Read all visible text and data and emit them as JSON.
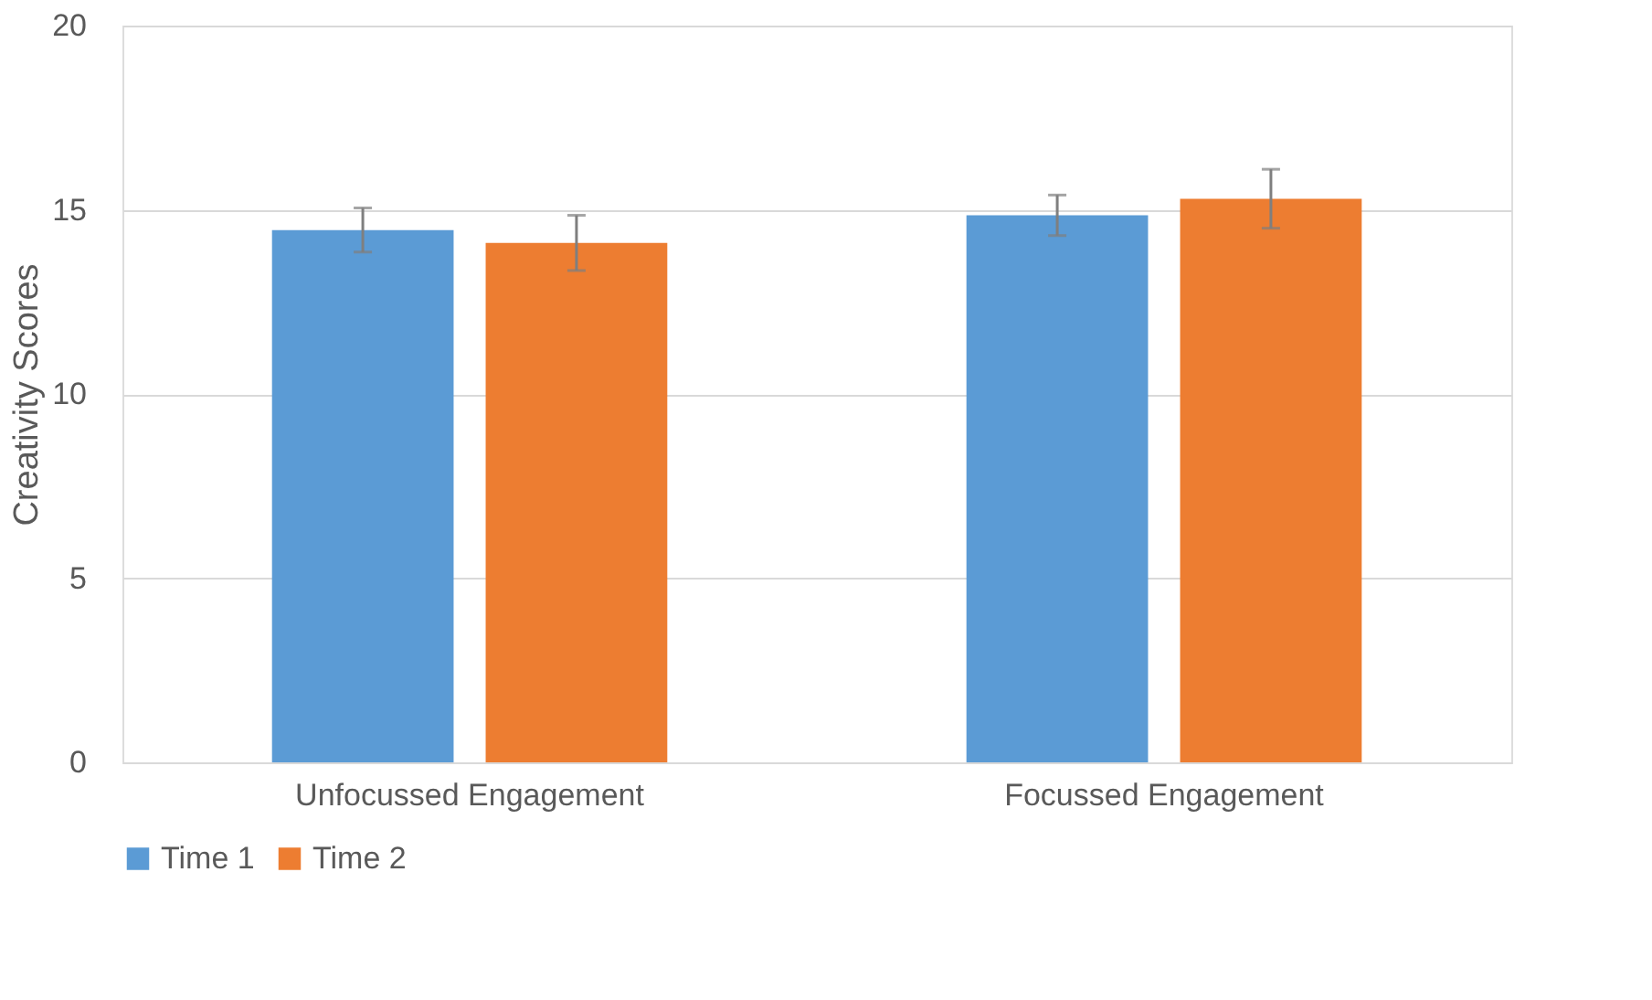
{
  "chart_data": {
    "type": "bar",
    "ylabel": "Creativity  Scores",
    "categories": [
      "Unfocussed Engagement",
      "Focussed Engagement"
    ],
    "series": [
      {
        "name": "Time 1",
        "color": "#5b9bd5",
        "values": [
          14.45,
          14.85
        ],
        "errors": [
          0.6,
          0.55
        ]
      },
      {
        "name": "Time 2",
        "color": "#ed7d31",
        "values": [
          14.1,
          15.3
        ],
        "errors": [
          0.75,
          0.8
        ]
      }
    ],
    "ylim": [
      0,
      20
    ],
    "yticks": [
      0,
      5,
      10,
      15,
      20
    ],
    "grid": "y",
    "legend": "bottom"
  }
}
